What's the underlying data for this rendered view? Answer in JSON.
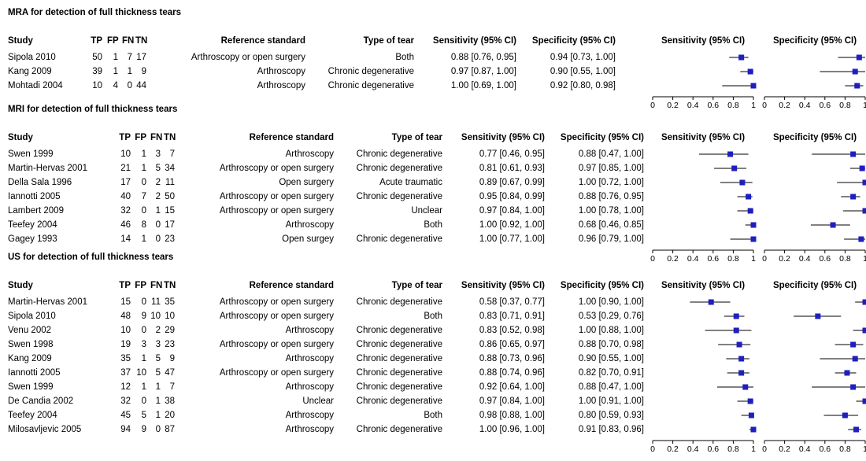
{
  "column_headers": {
    "study": "Study",
    "tp": "TP",
    "fp": "FP",
    "fn": "FN",
    "tn": "TN",
    "reference": "Reference standard",
    "type": "Type of tear",
    "sensitivity": "Sensitivity (95% CI)",
    "specificity": "Specificity (95% CI)"
  },
  "plot_headers": {
    "sensitivity": "Sensitivity (95% CI)",
    "specificity": "Specificity (95% CI)"
  },
  "axis_ticks": [
    "0",
    "0.2",
    "0.4",
    "0.6",
    "0.8",
    "1"
  ],
  "colors": {
    "marker": "#1f1fbf",
    "line": "#000000"
  },
  "chart_data": [
    {
      "type": "forest",
      "title": "MRA for detection of full thickness tears",
      "xlim": [
        0,
        1
      ],
      "rows": [
        {
          "study": "Sipola 2010",
          "tp": "50",
          "fp": "1",
          "fn": "7",
          "tn": "17",
          "reference": "Arthroscopy or open surgery",
          "type": "Both",
          "sens_text": "0.88 [0.76, 0.95]",
          "spec_text": "0.94 [0.73, 1.00]",
          "sens": [
            0.88,
            0.76,
            0.95
          ],
          "spec": [
            0.94,
            0.73,
            1.0
          ]
        },
        {
          "study": "Kang 2009",
          "tp": "39",
          "fp": "1",
          "fn": "1",
          "tn": "9",
          "reference": "Arthroscopy",
          "type": "Chronic degenerative",
          "sens_text": "0.97 [0.87, 1.00]",
          "spec_text": "0.90 [0.55, 1.00]",
          "sens": [
            0.97,
            0.87,
            1.0
          ],
          "spec": [
            0.9,
            0.55,
            1.0
          ]
        },
        {
          "study": "Mohtadi 2004",
          "tp": "10",
          "fp": "4",
          "fn": "0",
          "tn": "44",
          "reference": "Arthroscopy",
          "type": "Chronic degenerative",
          "sens_text": "1.00 [0.69, 1.00]",
          "spec_text": "0.92 [0.80, 0.98]",
          "sens": [
            1.0,
            0.69,
            1.0
          ],
          "spec": [
            0.92,
            0.8,
            0.98
          ]
        }
      ]
    },
    {
      "type": "forest",
      "title": "MRI for detection of full thickness tears",
      "xlim": [
        0,
        1
      ],
      "rows": [
        {
          "study": "Swen 1999",
          "tp": "10",
          "fp": "1",
          "fn": "3",
          "tn": "7",
          "reference": "Arthroscopy",
          "type": "Chronic degenerative",
          "sens_text": "0.77 [0.46, 0.95]",
          "spec_text": "0.88 [0.47, 1.00]",
          "sens": [
            0.77,
            0.46,
            0.95
          ],
          "spec": [
            0.88,
            0.47,
            1.0
          ]
        },
        {
          "study": "Martin-Hervas 2001",
          "tp": "21",
          "fp": "1",
          "fn": "5",
          "tn": "34",
          "reference": "Arthroscopy or open surgery",
          "type": "Chronic degenerative",
          "sens_text": "0.81 [0.61, 0.93]",
          "spec_text": "0.97 [0.85, 1.00]",
          "sens": [
            0.81,
            0.61,
            0.93
          ],
          "spec": [
            0.97,
            0.85,
            1.0
          ]
        },
        {
          "study": "Della Sala 1996",
          "tp": "17",
          "fp": "0",
          "fn": "2",
          "tn": "11",
          "reference": "Open surgery",
          "type": "Acute traumatic",
          "sens_text": "0.89 [0.67, 0.99]",
          "spec_text": "1.00 [0.72, 1.00]",
          "sens": [
            0.89,
            0.67,
            0.99
          ],
          "spec": [
            1.0,
            0.72,
            1.0
          ]
        },
        {
          "study": "Iannotti 2005",
          "tp": "40",
          "fp": "7",
          "fn": "2",
          "tn": "50",
          "reference": "Arthroscopy or open surgery",
          "type": "Chronic degenerative",
          "sens_text": "0.95 [0.84, 0.99]",
          "spec_text": "0.88 [0.76, 0.95]",
          "sens": [
            0.95,
            0.84,
            0.99
          ],
          "spec": [
            0.88,
            0.76,
            0.95
          ]
        },
        {
          "study": "Lambert 2009",
          "tp": "32",
          "fp": "0",
          "fn": "1",
          "tn": "15",
          "reference": "Arthroscopy or open surgery",
          "type": "Unclear",
          "sens_text": "0.97 [0.84, 1.00]",
          "spec_text": "1.00 [0.78, 1.00]",
          "sens": [
            0.97,
            0.84,
            1.0
          ],
          "spec": [
            1.0,
            0.78,
            1.0
          ]
        },
        {
          "study": "Teefey 2004",
          "tp": "46",
          "fp": "8",
          "fn": "0",
          "tn": "17",
          "reference": "Arthroscopy",
          "type": "Both",
          "sens_text": "1.00 [0.92, 1.00]",
          "spec_text": "0.68 [0.46, 0.85]",
          "sens": [
            1.0,
            0.92,
            1.0
          ],
          "spec": [
            0.68,
            0.46,
            0.85
          ]
        },
        {
          "study": "Gagey 1993",
          "tp": "14",
          "fp": "1",
          "fn": "0",
          "tn": "23",
          "reference": "Open surgey",
          "type": "Chronic degenerative",
          "sens_text": "1.00 [0.77, 1.00]",
          "spec_text": "0.96 [0.79, 1.00]",
          "sens": [
            1.0,
            0.77,
            1.0
          ],
          "spec": [
            0.96,
            0.79,
            1.0
          ]
        }
      ]
    },
    {
      "type": "forest",
      "title": "US for detection of full thickness tears",
      "xlim": [
        0,
        1
      ],
      "rows": [
        {
          "study": "Martin-Hervas 2001",
          "tp": "15",
          "fp": "0",
          "fn": "11",
          "tn": "35",
          "reference": "Arthroscopy or open surgery",
          "type": "Chronic degenerative",
          "sens_text": "0.58 [0.37, 0.77]",
          "spec_text": "1.00 [0.90, 1.00]",
          "sens": [
            0.58,
            0.37,
            0.77
          ],
          "spec": [
            1.0,
            0.9,
            1.0
          ]
        },
        {
          "study": "Sipola 2010",
          "tp": "48",
          "fp": "9",
          "fn": "10",
          "tn": "10",
          "reference": "Arthroscopy or open surgery",
          "type": "Both",
          "sens_text": "0.83 [0.71, 0.91]",
          "spec_text": "0.53 [0.29, 0.76]",
          "sens": [
            0.83,
            0.71,
            0.91
          ],
          "spec": [
            0.53,
            0.29,
            0.76
          ]
        },
        {
          "study": "Venu 2002",
          "tp": "10",
          "fp": "0",
          "fn": "2",
          "tn": "29",
          "reference": "Arthroscopy",
          "type": "Chronic degenerative",
          "sens_text": "0.83 [0.52, 0.98]",
          "spec_text": "1.00 [0.88, 1.00]",
          "sens": [
            0.83,
            0.52,
            0.98
          ],
          "spec": [
            1.0,
            0.88,
            1.0
          ]
        },
        {
          "study": "Swen 1998",
          "tp": "19",
          "fp": "3",
          "fn": "3",
          "tn": "23",
          "reference": "Arthroscopy or open surgery",
          "type": "Chronic degenerative",
          "sens_text": "0.86 [0.65, 0.97]",
          "spec_text": "0.88 [0.70, 0.98]",
          "sens": [
            0.86,
            0.65,
            0.97
          ],
          "spec": [
            0.88,
            0.7,
            0.98
          ]
        },
        {
          "study": "Kang 2009",
          "tp": "35",
          "fp": "1",
          "fn": "5",
          "tn": "9",
          "reference": "Arthroscopy",
          "type": "Chronic degenerative",
          "sens_text": "0.88 [0.73, 0.96]",
          "spec_text": "0.90 [0.55, 1.00]",
          "sens": [
            0.88,
            0.73,
            0.96
          ],
          "spec": [
            0.9,
            0.55,
            1.0
          ]
        },
        {
          "study": "Iannotti 2005",
          "tp": "37",
          "fp": "10",
          "fn": "5",
          "tn": "47",
          "reference": "Arthroscopy or open surgery",
          "type": "Chronic degenerative",
          "sens_text": "0.88 [0.74, 0.96]",
          "spec_text": "0.82 [0.70, 0.91]",
          "sens": [
            0.88,
            0.74,
            0.96
          ],
          "spec": [
            0.82,
            0.7,
            0.91
          ]
        },
        {
          "study": "Swen 1999",
          "tp": "12",
          "fp": "1",
          "fn": "1",
          "tn": "7",
          "reference": "Arthroscopy",
          "type": "Chronic degenerative",
          "sens_text": "0.92 [0.64, 1.00]",
          "spec_text": "0.88 [0.47, 1.00]",
          "sens": [
            0.92,
            0.64,
            1.0
          ],
          "spec": [
            0.88,
            0.47,
            1.0
          ]
        },
        {
          "study": "De Candia 2002",
          "tp": "32",
          "fp": "0",
          "fn": "1",
          "tn": "38",
          "reference": "Unclear",
          "type": "Chronic degenerative",
          "sens_text": "0.97 [0.84, 1.00]",
          "spec_text": "1.00 [0.91, 1.00]",
          "sens": [
            0.97,
            0.84,
            1.0
          ],
          "spec": [
            1.0,
            0.91,
            1.0
          ]
        },
        {
          "study": "Teefey 2004",
          "tp": "45",
          "fp": "5",
          "fn": "1",
          "tn": "20",
          "reference": "Arthroscopy",
          "type": "Both",
          "sens_text": "0.98 [0.88, 1.00]",
          "spec_text": "0.80 [0.59, 0.93]",
          "sens": [
            0.98,
            0.88,
            1.0
          ],
          "spec": [
            0.8,
            0.59,
            0.93
          ]
        },
        {
          "study": "Milosavljevic 2005",
          "tp": "94",
          "fp": "9",
          "fn": "0",
          "tn": "87",
          "reference": "Arthroscopy",
          "type": "Chronic degenerative",
          "sens_text": "1.00 [0.96, 1.00]",
          "spec_text": "0.91 [0.83, 0.96]",
          "sens": [
            1.0,
            0.96,
            1.0
          ],
          "spec": [
            0.91,
            0.83,
            0.96
          ]
        }
      ]
    }
  ]
}
